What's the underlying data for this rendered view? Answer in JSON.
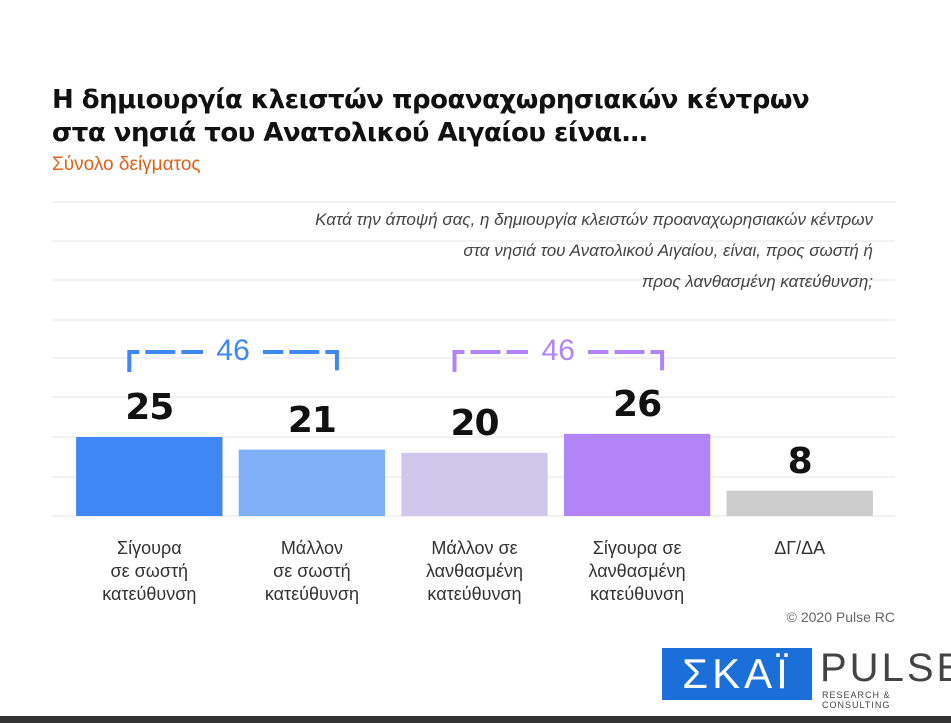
{
  "chart_data": {
    "type": "bar",
    "title": "Η δημιουργία κλειστών προαναχωρησιακών κέντρων\nστα νησιά του Ανατολικού Αιγαίου είναι…",
    "subtitle": "Σύνολο δείγματος",
    "question": "Κατά την άποψή σας, η δημιουργία κλειστών προαναχωρησιακών κέντρων\nστα νησιά του Ανατολικού Αιγαίου, είναι, προς σωστή ή\nπρος λανθασμένη κατεύθυνση;",
    "categories": [
      "Σίγουρα\nσε σωστή\nκατεύθυνση",
      "Μάλλον\nσε σωστή\nκατεύθυνση",
      "Μάλλον σε\nλανθασμένη\nκατεύθυνση",
      "Σίγουρα σε\nλανθασμένη\nκατεύθυνση",
      "ΔΓ/ΔΑ"
    ],
    "values": [
      25,
      21,
      20,
      26,
      8
    ],
    "colors": [
      "#3f87f5",
      "#80b0f8",
      "#d0c8ea",
      "#b185f7",
      "#cccccc"
    ],
    "brackets": [
      {
        "value": 46,
        "color": "#3f87f5"
      },
      {
        "value": 46,
        "color": "#b185f7"
      }
    ],
    "ylim": [
      0,
      100
    ],
    "copyright": "© 2020 Pulse RC",
    "logos": {
      "skai": "ΣΚΑΪ",
      "pulse": "PULSE",
      "pulse_sub": "RESEARCH & CONSULTING"
    }
  }
}
